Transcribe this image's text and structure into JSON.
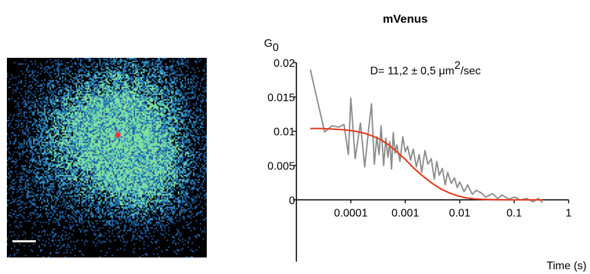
{
  "image_panel": {
    "description_colors": {
      "background": "#000000",
      "signal_low": "#1f5f9f",
      "signal_mid": "#3aa0c8",
      "signal_high": "#7fe0a0",
      "roi": "#ff3333",
      "scalebar": "#ffffff"
    }
  },
  "chart_data": {
    "type": "line",
    "title": "mVenus",
    "ylabel": "G",
    "ylabel_subscript": "0",
    "xlabel": "Time (s)",
    "annotation": {
      "prefix": "D= 11,2 ± 0,5 μm",
      "superscript": "2",
      "suffix": "/sec"
    },
    "x_scale": "log",
    "xlim": [
      1e-05,
      1
    ],
    "ylim": [
      -0.009,
      0.02
    ],
    "x_ticks": [
      0.0001,
      0.001,
      0.01,
      0.1,
      1
    ],
    "x_tick_labels": [
      "0.0001",
      "0.001",
      "0.01",
      "0.1",
      "1"
    ],
    "y_ticks": [
      0,
      0.005,
      0.01,
      0.015,
      0.02
    ],
    "y_tick_labels": [
      "0",
      "0.005",
      "0.01",
      "0.015",
      "0.02"
    ],
    "series": [
      {
        "kind": "data",
        "color": "#8c8c8c",
        "x": [
          1.8e-05,
          3.3e-05,
          4.5e-05,
          6e-05,
          7.5e-05,
          9e-05,
          0.0001,
          0.00012,
          0.00015,
          0.00018,
          0.00021,
          0.00024,
          0.00027,
          0.0003,
          0.00033,
          0.00036,
          0.0004,
          0.00044,
          0.00048,
          0.00052,
          0.00056,
          0.0006,
          0.00065,
          0.0007,
          0.0008,
          0.0009,
          0.001,
          0.0011,
          0.00125,
          0.0014,
          0.0016,
          0.0018,
          0.002,
          0.0023,
          0.0026,
          0.003,
          0.0034,
          0.0038,
          0.0042,
          0.0048,
          0.0054,
          0.006,
          0.007,
          0.008,
          0.009,
          0.01,
          0.012,
          0.014,
          0.017,
          0.02,
          0.025,
          0.03,
          0.04,
          0.05,
          0.06,
          0.08,
          0.1,
          0.13,
          0.17,
          0.22,
          0.28,
          0.33
        ],
        "y": [
          0.019,
          0.0099,
          0.0108,
          0.0106,
          0.011,
          0.0066,
          0.0148,
          0.006,
          0.0112,
          0.0048,
          0.01,
          0.014,
          0.0052,
          0.0092,
          0.0066,
          0.0108,
          0.005,
          0.009,
          0.0062,
          0.0085,
          0.0045,
          0.0098,
          0.0068,
          0.008,
          0.0056,
          0.0092,
          0.007,
          0.0078,
          0.0058,
          0.0074,
          0.0048,
          0.0066,
          0.004,
          0.0072,
          0.0052,
          0.006,
          0.003,
          0.0056,
          0.0036,
          0.0046,
          0.0022,
          0.004,
          0.0024,
          0.0032,
          0.0018,
          0.0026,
          0.0012,
          0.0022,
          0.0008,
          0.0014,
          0.001,
          0.0004,
          0.0009,
          0.0002,
          0.0007,
          0.0001,
          0.0004,
          0.0,
          0.0002,
          -0.0003,
          0.0002,
          -0.0004
        ]
      },
      {
        "kind": "fit",
        "color": "#e63a1e",
        "x": [
          1.8e-05,
          3e-05,
          5e-05,
          8e-05,
          0.00012,
          0.00018,
          0.00025,
          0.00035,
          0.0005,
          0.0007,
          0.001,
          0.0014,
          0.002,
          0.003,
          0.0045,
          0.0065,
          0.009,
          0.013,
          0.018,
          0.025,
          0.035,
          0.05,
          0.07,
          0.1,
          0.15,
          0.22,
          0.33
        ],
        "y": [
          0.0104,
          0.0104,
          0.0103,
          0.0102,
          0.01,
          0.0097,
          0.0093,
          0.0088,
          0.008,
          0.007,
          0.0059,
          0.0047,
          0.0036,
          0.0025,
          0.0016,
          0.001,
          0.0006,
          0.0003,
          0.00015,
          8e-05,
          4e-05,
          2e-05,
          1e-05,
          0.0,
          0.0,
          0.0,
          0.0
        ]
      }
    ]
  }
}
